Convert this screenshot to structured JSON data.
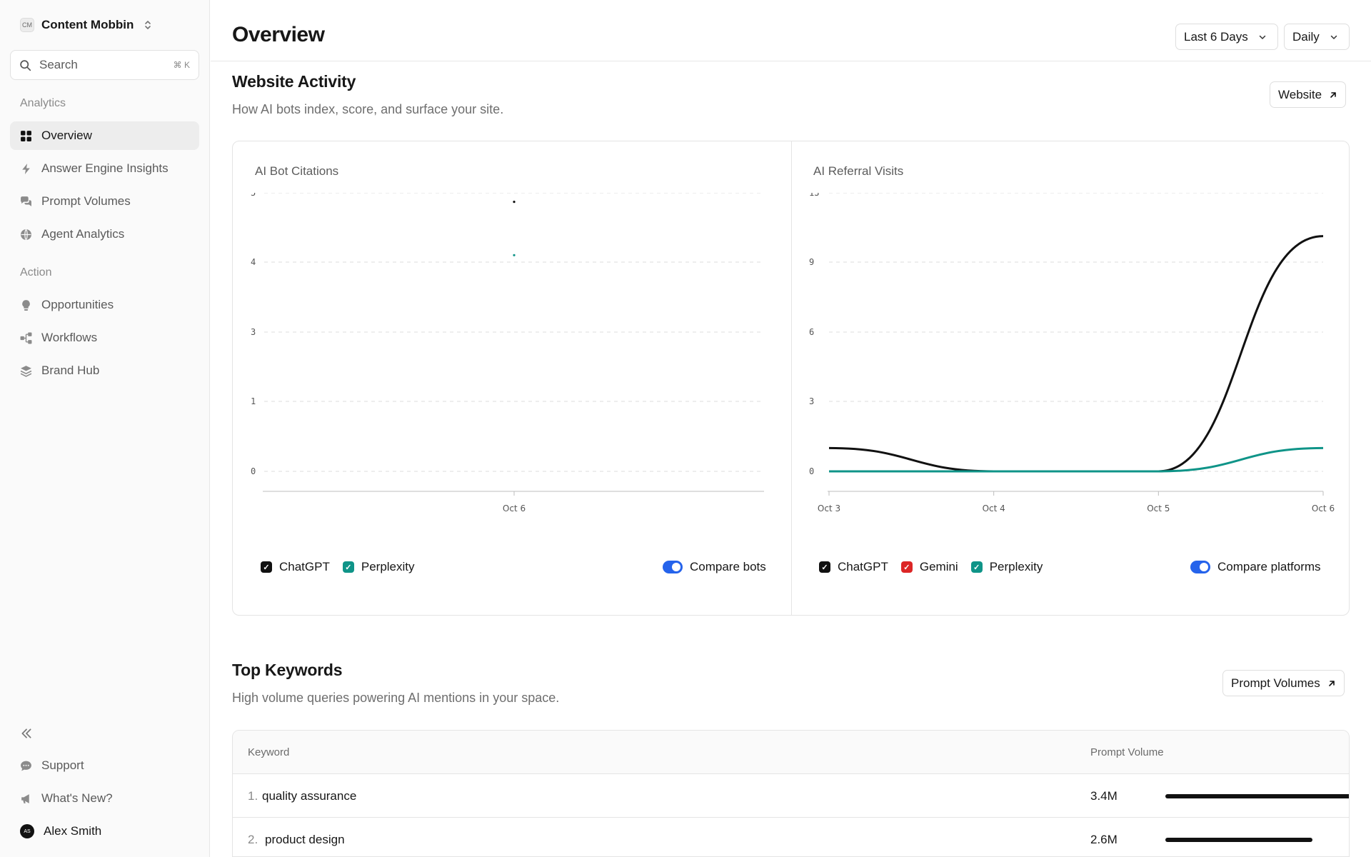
{
  "workspace": {
    "badge": "CM",
    "name": "Content Mobbin"
  },
  "search": {
    "label": "Search",
    "shortcut": "⌘ K"
  },
  "sidebar": {
    "analytics_title": "Analytics",
    "analytics_items": [
      {
        "label": "Overview",
        "icon": "grid-icon",
        "active": true
      },
      {
        "label": "Answer Engine Insights",
        "icon": "bolt-icon"
      },
      {
        "label": "Prompt Volumes",
        "icon": "chat-bubbles-icon"
      },
      {
        "label": "Agent Analytics",
        "icon": "globe-icon"
      }
    ],
    "action_title": "Action",
    "action_items": [
      {
        "label": "Opportunities",
        "icon": "lightbulb-icon"
      },
      {
        "label": "Workflows",
        "icon": "workflow-icon"
      },
      {
        "label": "Brand Hub",
        "icon": "layers-icon"
      }
    ],
    "footer_items": [
      {
        "label": "Support",
        "icon": "chat-icon"
      },
      {
        "label": "What's New?",
        "icon": "megaphone-icon"
      }
    ],
    "user": {
      "initials": "AS",
      "name": "Alex Smith"
    }
  },
  "header": {
    "title": "Overview",
    "range_select": "Last 6 Days",
    "interval_select": "Daily"
  },
  "website_activity": {
    "title": "Website Activity",
    "subtitle": "How AI bots index, score, and surface your site.",
    "link_label": "Website"
  },
  "chart_data": [
    {
      "type": "line",
      "title": "AI Bot Citations",
      "x": [
        "Oct 6"
      ],
      "y_ticks": [
        "0",
        "1",
        "3",
        "4",
        "5"
      ],
      "series": [
        {
          "name": "ChatGPT",
          "values": [
            4.87
          ],
          "color": "#111111"
        },
        {
          "name": "Perplexity",
          "values": [
            4.1
          ],
          "color": "#0f9488"
        }
      ],
      "legend": [
        "ChatGPT",
        "Perplexity"
      ],
      "toggle_label": "Compare bots",
      "grid": true
    },
    {
      "type": "line",
      "title": "AI Referral Visits",
      "x": [
        "Oct 3",
        "Oct 4",
        "Oct 5",
        "Oct 6"
      ],
      "y_ticks": [
        "0",
        "3",
        "6",
        "9",
        "13"
      ],
      "series": [
        {
          "name": "ChatGPT",
          "values": [
            1,
            0,
            0,
            10.5
          ],
          "color": "#111111"
        },
        {
          "name": "Perplexity",
          "values": [
            0,
            0,
            0,
            1
          ],
          "color": "#0f9488"
        }
      ],
      "legend": [
        "ChatGPT",
        "Gemini",
        "Perplexity"
      ],
      "toggle_label": "Compare platforms",
      "grid": true
    }
  ],
  "legend_colors": {
    "ChatGPT": "#111111",
    "Gemini": "#dc2626",
    "Perplexity": "#0f9488"
  },
  "top_keywords": {
    "title": "Top Keywords",
    "subtitle": "High volume queries powering AI mentions in your space.",
    "link_label": "Prompt Volumes",
    "columns": [
      "Keyword",
      "Prompt Volume"
    ],
    "rows": [
      {
        "rank": "1.",
        "keyword": "quality assurance",
        "volume": "3.4M",
        "share": 1.0
      },
      {
        "rank": "2.",
        "keyword": "product design",
        "volume": "2.6M",
        "share": 0.77
      }
    ]
  }
}
